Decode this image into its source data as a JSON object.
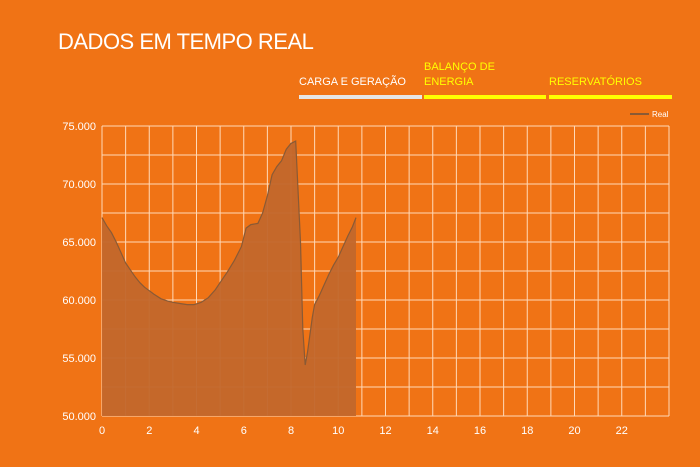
{
  "header": {
    "title": "DADOS EM TEMPO REAL"
  },
  "tabs": [
    {
      "label": "CARGA E GERAÇÃO",
      "active": true
    },
    {
      "label": "BALANÇO DE ENERGIA",
      "active": false
    },
    {
      "label": "RESERVATÓRIOS",
      "active": false
    }
  ],
  "colors": {
    "background": "#f07315",
    "grid": "#ffd9b8",
    "area_fill": "#c2672b",
    "line": "#8a5a35",
    "active_tab": "#e6e6e6",
    "inactive_tab": "#ffff00"
  },
  "chart_data": {
    "type": "area",
    "series": [
      {
        "name": "Real",
        "x": [
          0,
          0.2,
          0.4,
          0.6,
          0.8,
          1.0,
          1.2,
          1.4,
          1.6,
          1.8,
          2.0,
          2.2,
          2.5,
          2.8,
          3.0,
          3.3,
          3.6,
          3.9,
          4.2,
          4.5,
          4.8,
          5.0,
          5.3,
          5.6,
          5.9,
          6.1,
          6.3,
          6.6,
          6.8,
          7.0,
          7.2,
          7.4,
          7.6,
          7.8,
          8.0,
          8.2,
          8.4,
          8.5,
          8.6,
          8.7,
          8.8,
          8.9,
          9.0,
          9.2,
          9.4,
          9.6,
          9.8,
          10.0,
          10.2,
          10.4,
          10.6,
          10.75
        ],
        "values": [
          67100,
          66400,
          65800,
          65000,
          64100,
          63200,
          62600,
          62000,
          61500,
          61100,
          60800,
          60500,
          60100,
          59900,
          59800,
          59700,
          59600,
          59600,
          59800,
          60200,
          60900,
          61500,
          62400,
          63400,
          64600,
          66200,
          66500,
          66600,
          67500,
          69000,
          70800,
          71500,
          72000,
          73000,
          73500,
          73700,
          65000,
          57500,
          54400,
          55500,
          57000,
          58500,
          59600,
          60400,
          61300,
          62200,
          63000,
          63700,
          64600,
          65500,
          66300,
          67100
        ]
      }
    ],
    "xlim": [
      0,
      24
    ],
    "ylim": [
      50000,
      75000
    ],
    "x_ticks": [
      "0",
      "2",
      "4",
      "6",
      "8",
      "10",
      "12",
      "14",
      "16",
      "18",
      "20",
      "22"
    ],
    "y_ticks": [
      "50.000",
      "55.000",
      "60.000",
      "65.000",
      "70.000",
      "75.000"
    ],
    "grid": true,
    "legend_position": "top-right"
  }
}
